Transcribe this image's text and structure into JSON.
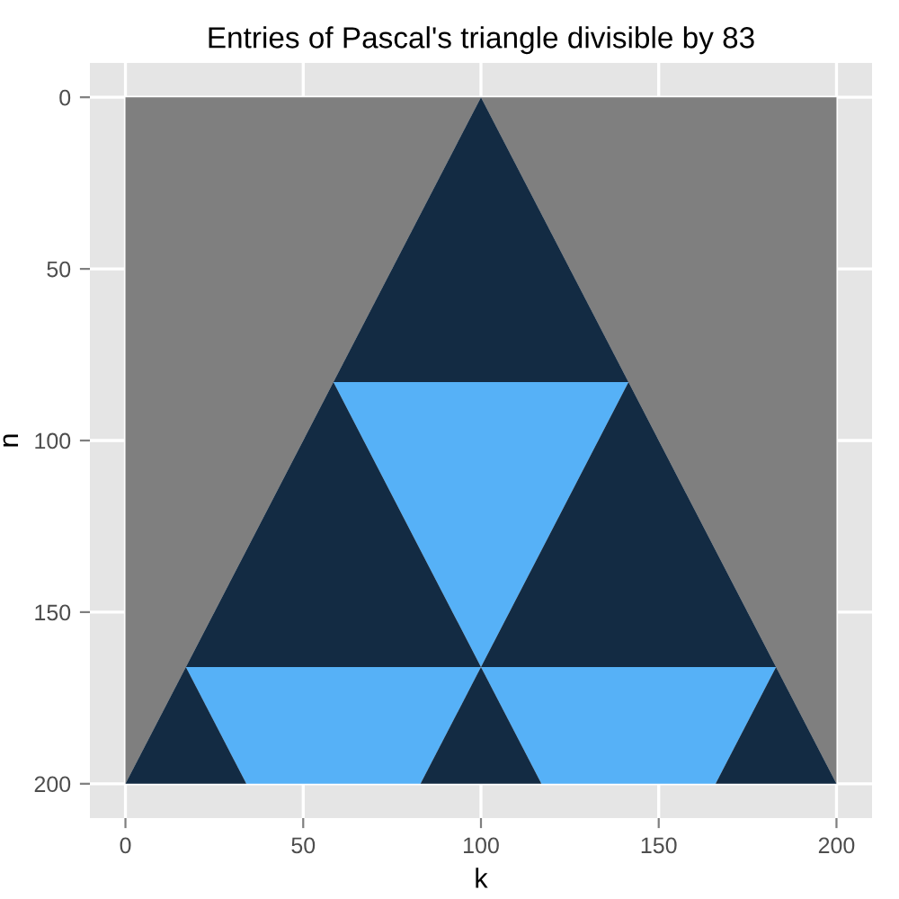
{
  "chart_data": {
    "type": "area",
    "stacked": true,
    "title": "Entries of Pascal's triangle divisible by 83",
    "xlabel": "k",
    "ylabel": "n",
    "xlim": [
      -10,
      210
    ],
    "ylim": [
      210,
      -10
    ],
    "xticks": [
      0,
      50,
      100,
      150,
      200
    ],
    "yticks": [
      0,
      50,
      100,
      150,
      200
    ],
    "grid": true,
    "legend": false,
    "x": [
      0,
      17,
      34,
      58.5,
      83,
      100,
      117,
      141.5,
      166,
      183,
      200
    ],
    "series": [
      {
        "color": "#7f7f7f",
        "values": [
          200,
          166,
          132,
          83,
          34,
          0,
          34,
          83,
          132,
          166,
          200
        ]
      },
      {
        "color": "#132b43",
        "values": [
          null,
          null,
          null,
          0,
          49,
          83,
          49,
          0,
          null,
          null,
          null
        ]
      },
      {
        "color": "#56b1f7",
        "values": [
          null,
          null,
          null,
          0,
          49,
          83,
          49,
          0,
          null,
          null,
          null
        ]
      },
      {
        "color": "#132b43",
        "values": [
          null,
          0,
          34,
          83,
          34,
          0,
          34,
          83,
          34,
          0,
          null
        ]
      },
      {
        "color": "#56b1f7",
        "values": [
          null,
          0,
          34,
          34,
          34,
          0,
          34,
          34,
          34,
          0,
          null
        ]
      },
      {
        "color": "#132b43",
        "values": [
          0,
          34,
          0,
          null,
          0,
          34,
          0,
          null,
          0,
          34,
          0
        ]
      }
    ]
  }
}
